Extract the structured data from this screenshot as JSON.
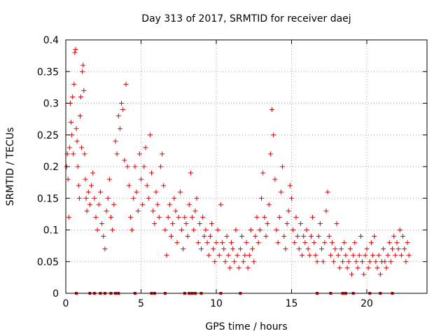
{
  "chart_data": {
    "type": "scatter",
    "title": "Day 313 of 2017, SRMTID for receiver daej",
    "xlabel": "GPS time / hours",
    "ylabel": "SRMTID / TECUs",
    "xlim": [
      0,
      24
    ],
    "ylim": [
      0,
      0.4
    ],
    "x_ticks": [
      0,
      5,
      10,
      15,
      20
    ],
    "x_tick_labels": [
      "0",
      "5",
      "10",
      "15",
      "20"
    ],
    "y_ticks": [
      0,
      0.05,
      0.1,
      0.15,
      0.2,
      0.25,
      0.3,
      0.35,
      0.4
    ],
    "y_tick_labels": [
      "0",
      "0.05",
      "0.1",
      "0.15",
      "0.2",
      "0.25",
      "0.3",
      "0.35",
      "0.4"
    ],
    "grid": true,
    "marker": "+",
    "color": "#e00000",
    "series": [
      {
        "name": "SRMTID",
        "points": [
          [
            0.05,
            0.2
          ],
          [
            0.1,
            0.22
          ],
          [
            0.15,
            0.18
          ],
          [
            0.2,
            0.12
          ],
          [
            0.25,
            0.23
          ],
          [
            0.3,
            0.3
          ],
          [
            0.35,
            0.27
          ],
          [
            0.4,
            0.25
          ],
          [
            0.45,
            0.31
          ],
          [
            0.5,
            0.22
          ],
          [
            0.55,
            0.33
          ],
          [
            0.6,
            0.38
          ],
          [
            0.65,
            0.385
          ],
          [
            0.7,
            0.26
          ],
          [
            0.75,
            0.24
          ],
          [
            0.8,
            0.2
          ],
          [
            0.85,
            0.17
          ],
          [
            0.9,
            0.15
          ],
          [
            0.95,
            0.28
          ],
          [
            1.0,
            0.31
          ],
          [
            1.05,
            0.23
          ],
          [
            1.1,
            0.35
          ],
          [
            1.15,
            0.36
          ],
          [
            1.2,
            0.32
          ],
          [
            1.25,
            0.22
          ],
          [
            1.3,
            0.18
          ],
          [
            1.35,
            0.15
          ],
          [
            1.4,
            0.13
          ],
          [
            1.5,
            0.16
          ],
          [
            1.6,
            0.14
          ],
          [
            1.7,
            0.17
          ],
          [
            1.8,
            0.19
          ],
          [
            1.9,
            0.15
          ],
          [
            2.0,
            0.12
          ],
          [
            2.1,
            0.1
          ],
          [
            2.2,
            0.14
          ],
          [
            2.3,
            0.16
          ],
          [
            2.4,
            0.11
          ],
          [
            2.5,
            0.09
          ],
          [
            2.6,
            0.07
          ],
          [
            2.7,
            0.13
          ],
          [
            2.8,
            0.15
          ],
          [
            2.9,
            0.18
          ],
          [
            3.0,
            0.12
          ],
          [
            3.1,
            0.1
          ],
          [
            3.2,
            0.14
          ],
          [
            3.3,
            0.24
          ],
          [
            3.4,
            0.22
          ],
          [
            3.5,
            0.28
          ],
          [
            3.6,
            0.26
          ],
          [
            3.7,
            0.3
          ],
          [
            3.8,
            0.29
          ],
          [
            3.9,
            0.21
          ],
          [
            4.0,
            0.33
          ],
          [
            4.1,
            0.2
          ],
          [
            4.2,
            0.17
          ],
          [
            4.3,
            0.12
          ],
          [
            4.4,
            0.1
          ],
          [
            4.5,
            0.15
          ],
          [
            4.6,
            0.2
          ],
          [
            4.7,
            0.16
          ],
          [
            4.8,
            0.13
          ],
          [
            4.9,
            0.22
          ],
          [
            5.0,
            0.18
          ],
          [
            5.1,
            0.14
          ],
          [
            5.2,
            0.2
          ],
          [
            5.3,
            0.23
          ],
          [
            5.4,
            0.17
          ],
          [
            5.5,
            0.15
          ],
          [
            5.6,
            0.25
          ],
          [
            5.7,
            0.19
          ],
          [
            5.8,
            0.13
          ],
          [
            5.9,
            0.11
          ],
          [
            6.0,
            0.16
          ],
          [
            6.1,
            0.14
          ],
          [
            6.2,
            0.12
          ],
          [
            6.3,
            0.2
          ],
          [
            6.4,
            0.22
          ],
          [
            6.5,
            0.17
          ],
          [
            6.6,
            0.1
          ],
          [
            6.7,
            0.06
          ],
          [
            6.8,
            0.12
          ],
          [
            6.9,
            0.14
          ],
          [
            7.0,
            0.09
          ],
          [
            7.1,
            0.11
          ],
          [
            7.2,
            0.15
          ],
          [
            7.3,
            0.13
          ],
          [
            7.4,
            0.08
          ],
          [
            7.5,
            0.12
          ],
          [
            7.6,
            0.16
          ],
          [
            7.7,
            0.1
          ],
          [
            7.8,
            0.07
          ],
          [
            7.9,
            0.12
          ],
          [
            8.0,
            0.11
          ],
          [
            8.1,
            0.09
          ],
          [
            8.2,
            0.14
          ],
          [
            8.3,
            0.19
          ],
          [
            8.4,
            0.12
          ],
          [
            8.5,
            0.1
          ],
          [
            8.6,
            0.13
          ],
          [
            8.7,
            0.15
          ],
          [
            8.8,
            0.08
          ],
          [
            8.9,
            0.11
          ],
          [
            9.0,
            0.07
          ],
          [
            9.1,
            0.12
          ],
          [
            9.2,
            0.09
          ],
          [
            9.3,
            0.1
          ],
          [
            9.4,
            0.08
          ],
          [
            9.5,
            0.06
          ],
          [
            9.6,
            0.09
          ],
          [
            9.7,
            0.11
          ],
          [
            9.8,
            0.07
          ],
          [
            9.9,
            0.05
          ],
          [
            10.0,
            0.08
          ],
          [
            10.1,
            0.1
          ],
          [
            10.2,
            0.06
          ],
          [
            10.3,
            0.14
          ],
          [
            10.4,
            0.08
          ],
          [
            10.5,
            0.07
          ],
          [
            10.6,
            0.05
          ],
          [
            10.7,
            0.09
          ],
          [
            10.8,
            0.06
          ],
          [
            10.9,
            0.04
          ],
          [
            11.0,
            0.08
          ],
          [
            11.1,
            0.07
          ],
          [
            11.2,
            0.05
          ],
          [
            11.3,
            0.1
          ],
          [
            11.4,
            0.06
          ],
          [
            11.5,
            0.04
          ],
          [
            11.6,
            0.07
          ],
          [
            11.7,
            0.09
          ],
          [
            11.8,
            0.05
          ],
          [
            11.9,
            0.06
          ],
          [
            12.0,
            0.08
          ],
          [
            12.1,
            0.04
          ],
          [
            12.2,
            0.06
          ],
          [
            12.3,
            0.1
          ],
          [
            12.4,
            0.07
          ],
          [
            12.5,
            0.05
          ],
          [
            12.6,
            0.09
          ],
          [
            12.7,
            0.12
          ],
          [
            12.8,
            0.08
          ],
          [
            12.9,
            0.1
          ],
          [
            13.0,
            0.15
          ],
          [
            13.1,
            0.19
          ],
          [
            13.2,
            0.12
          ],
          [
            13.3,
            0.09
          ],
          [
            13.4,
            0.11
          ],
          [
            13.5,
            0.14
          ],
          [
            13.6,
            0.22
          ],
          [
            13.7,
            0.29
          ],
          [
            13.8,
            0.25
          ],
          [
            13.9,
            0.18
          ],
          [
            14.0,
            0.1
          ],
          [
            14.1,
            0.08
          ],
          [
            14.2,
            0.12
          ],
          [
            14.3,
            0.16
          ],
          [
            14.4,
            0.2
          ],
          [
            14.5,
            0.09
          ],
          [
            14.6,
            0.07
          ],
          [
            14.7,
            0.11
          ],
          [
            14.8,
            0.13
          ],
          [
            14.9,
            0.17
          ],
          [
            15.0,
            0.15
          ],
          [
            15.1,
            0.1
          ],
          [
            15.2,
            0.08
          ],
          [
            15.3,
            0.12
          ],
          [
            15.4,
            0.09
          ],
          [
            15.5,
            0.07
          ],
          [
            15.6,
            0.11
          ],
          [
            15.7,
            0.06
          ],
          [
            15.8,
            0.09
          ],
          [
            15.9,
            0.08
          ],
          [
            16.0,
            0.1
          ],
          [
            16.1,
            0.07
          ],
          [
            16.2,
            0.06
          ],
          [
            16.3,
            0.09
          ],
          [
            16.4,
            0.12
          ],
          [
            16.5,
            0.08
          ],
          [
            16.6,
            0.06
          ],
          [
            16.7,
            0.05
          ],
          [
            16.8,
            0.09
          ],
          [
            16.9,
            0.11
          ],
          [
            17.0,
            0.07
          ],
          [
            17.1,
            0.05
          ],
          [
            17.2,
            0.08
          ],
          [
            17.3,
            0.13
          ],
          [
            17.4,
            0.16
          ],
          [
            17.5,
            0.09
          ],
          [
            17.6,
            0.06
          ],
          [
            17.7,
            0.08
          ],
          [
            17.8,
            0.05
          ],
          [
            17.9,
            0.07
          ],
          [
            18.0,
            0.11
          ],
          [
            18.1,
            0.06
          ],
          [
            18.2,
            0.04
          ],
          [
            18.3,
            0.07
          ],
          [
            18.4,
            0.05
          ],
          [
            18.5,
            0.08
          ],
          [
            18.6,
            0.06
          ],
          [
            18.7,
            0.04
          ],
          [
            18.8,
            0.05
          ],
          [
            18.9,
            0.07
          ],
          [
            19.0,
            0.03
          ],
          [
            19.1,
            0.06
          ],
          [
            19.2,
            0.08
          ],
          [
            19.3,
            0.05
          ],
          [
            19.4,
            0.04
          ],
          [
            19.5,
            0.06
          ],
          [
            19.6,
            0.09
          ],
          [
            19.7,
            0.05
          ],
          [
            19.8,
            0.03
          ],
          [
            19.9,
            0.06
          ],
          [
            20.0,
            0.07
          ],
          [
            20.1,
            0.04
          ],
          [
            20.2,
            0.05
          ],
          [
            20.3,
            0.08
          ],
          [
            20.4,
            0.06
          ],
          [
            20.5,
            0.09
          ],
          [
            20.6,
            0.05
          ],
          [
            20.7,
            0.04
          ],
          [
            20.8,
            0.06
          ],
          [
            20.9,
            0.03
          ],
          [
            21.0,
            0.05
          ],
          [
            21.1,
            0.07
          ],
          [
            21.2,
            0.05
          ],
          [
            21.3,
            0.04
          ],
          [
            21.4,
            0.06
          ],
          [
            21.5,
            0.08
          ],
          [
            21.6,
            0.05
          ],
          [
            21.7,
            0.07
          ],
          [
            21.8,
            0.09
          ],
          [
            21.9,
            0.06
          ],
          [
            22.0,
            0.08
          ],
          [
            22.1,
            0.07
          ],
          [
            22.2,
            0.1
          ],
          [
            22.3,
            0.06
          ],
          [
            22.4,
            0.09
          ],
          [
            22.5,
            0.07
          ],
          [
            22.6,
            0.05
          ],
          [
            22.7,
            0.08
          ],
          [
            22.8,
            0.06
          ]
        ]
      }
    ],
    "data_gaps": [
      {
        "name": "gaps",
        "y": 0,
        "x": [
          0.7,
          1.6,
          1.9,
          2.3,
          2.6,
          3.0,
          3.3,
          3.5,
          4.6,
          5.7,
          5.9,
          6.6,
          7.9,
          8.2,
          8.4,
          8.6,
          9.0,
          10.3,
          11.6,
          16.7,
          17.6,
          18.4,
          18.6,
          19.1,
          20.2,
          20.9,
          21.7
        ]
      }
    ]
  }
}
